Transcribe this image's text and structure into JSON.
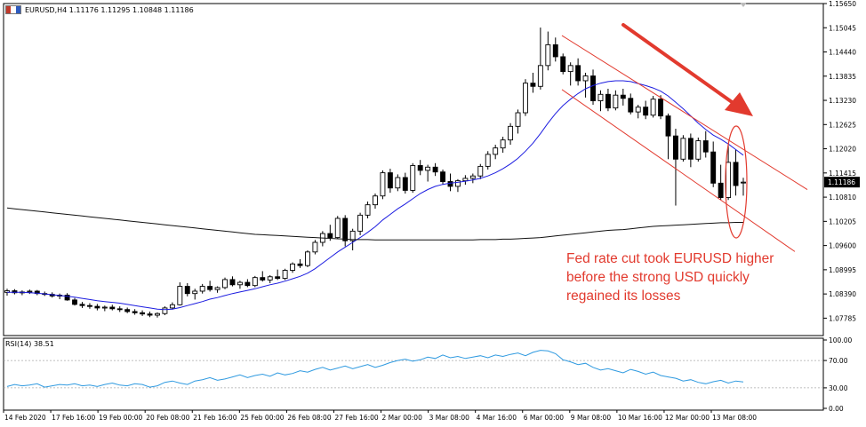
{
  "header": {
    "symbol_line": "EURUSD,H4  1.11176 1.11295 1.10848 1.11186",
    "flag_colors": [
      "#c0392b",
      "#ffffff",
      "#2e5bbf"
    ]
  },
  "rsi_header": "RSI(14) 38.51",
  "annotation": {
    "text": "Fed rate cut took EURUSD higher before the strong USD quickly regained its losses",
    "color": "#e23a2e"
  },
  "chart_data": [
    {
      "type": "candlestick",
      "symbol": "EURUSD",
      "timeframe": "H4",
      "last_ohlc": {
        "open": 1.11176,
        "high": 1.11295,
        "low": 1.10848,
        "close": 1.11186
      },
      "current_price_label": "1.11186",
      "y_ticks": [
        "1.15650",
        "1.15045",
        "1.14440",
        "1.13835",
        "1.13230",
        "1.12625",
        "1.12020",
        "1.11415",
        "1.10810",
        "1.10205",
        "1.09600",
        "1.08995",
        "1.08390",
        "1.07785"
      ],
      "ylim": [
        1.0735,
        1.1565
      ],
      "x_labels": [
        "14 Feb 2020",
        "17 Feb 16:00",
        "19 Feb 00:00",
        "20 Feb 08:00",
        "21 Feb 16:00",
        "25 Feb 00:00",
        "26 Feb 08:00",
        "27 Feb 16:00",
        "2 Mar 00:00",
        "3 Mar 08:00",
        "4 Mar 16:00",
        "6 Mar 00:00",
        "9 Mar 08:00",
        "10 Mar 16:00",
        "12 Mar 00:00",
        "13 Mar 08:00"
      ],
      "candles": [
        [
          1.0843,
          1.0852,
          1.0835,
          1.0847
        ],
        [
          1.0847,
          1.0851,
          1.0838,
          1.0842
        ],
        [
          1.0842,
          1.0848,
          1.0836,
          1.0844
        ],
        [
          1.0844,
          1.085,
          1.0839,
          1.0846
        ],
        [
          1.0846,
          1.0849,
          1.0836,
          1.084
        ],
        [
          1.084,
          1.0845,
          1.0834,
          1.0838
        ],
        [
          1.0838,
          1.0843,
          1.083,
          1.0834
        ],
        [
          1.0834,
          1.084,
          1.0826,
          1.0836
        ],
        [
          1.0836,
          1.0841,
          1.0822,
          1.0824
        ],
        [
          1.0824,
          1.0829,
          1.081,
          1.0813
        ],
        [
          1.0813,
          1.0819,
          1.0804,
          1.081
        ],
        [
          1.081,
          1.0816,
          1.0802,
          1.0808
        ],
        [
          1.0808,
          1.0814,
          1.0798,
          1.0804
        ],
        [
          1.0804,
          1.081,
          1.0796,
          1.0806
        ],
        [
          1.0806,
          1.0812,
          1.0798,
          1.0802
        ],
        [
          1.0802,
          1.0808,
          1.0794,
          1.08
        ],
        [
          1.08,
          1.0805,
          1.0791,
          1.0795
        ],
        [
          1.0795,
          1.0801,
          1.0787,
          1.0792
        ],
        [
          1.0792,
          1.0798,
          1.0784,
          1.0789
        ],
        [
          1.0789,
          1.0795,
          1.0781,
          1.0786
        ],
        [
          1.0786,
          1.0793,
          1.078,
          1.079
        ],
        [
          1.079,
          1.0808,
          1.0786,
          1.0804
        ],
        [
          1.0804,
          1.0818,
          1.08,
          1.0812
        ],
        [
          1.0812,
          1.0868,
          1.081,
          1.0858
        ],
        [
          1.0858,
          1.0866,
          1.0833,
          1.084
        ],
        [
          1.084,
          1.0852,
          1.0825,
          1.0846
        ],
        [
          1.0846,
          1.0864,
          1.084,
          1.0858
        ],
        [
          1.0858,
          1.0872,
          1.0845,
          1.085
        ],
        [
          1.085,
          1.0858,
          1.0842,
          1.0855
        ],
        [
          1.0855,
          1.088,
          1.0851,
          1.0875
        ],
        [
          1.0875,
          1.0883,
          1.0858,
          1.0862
        ],
        [
          1.0862,
          1.0872,
          1.0852,
          1.0868
        ],
        [
          1.0868,
          1.0876,
          1.0856,
          1.086
        ],
        [
          1.086,
          1.0884,
          1.0856,
          1.088
        ],
        [
          1.088,
          1.0896,
          1.087,
          1.0874
        ],
        [
          1.0874,
          1.0886,
          1.0866,
          1.0882
        ],
        [
          1.0882,
          1.09,
          1.0874,
          1.0878
        ],
        [
          1.0878,
          1.0902,
          1.0874,
          1.0898
        ],
        [
          1.0898,
          1.0918,
          1.0892,
          1.0914
        ],
        [
          1.0914,
          1.0926,
          1.0904,
          1.091
        ],
        [
          1.091,
          1.0948,
          1.0906,
          1.0944
        ],
        [
          1.0944,
          1.0974,
          1.0938,
          1.0968
        ],
        [
          1.0968,
          1.0996,
          1.0958,
          1.099
        ],
        [
          1.099,
          1.1012,
          1.0972,
          1.098
        ],
        [
          1.098,
          1.1034,
          1.0976,
          1.1028
        ],
        [
          1.1028,
          1.1036,
          1.0958,
          1.0972
        ],
        [
          1.0972,
          1.1002,
          1.0948,
          1.0996
        ],
        [
          1.0996,
          1.1042,
          1.0986,
          1.1036
        ],
        [
          1.1036,
          1.107,
          1.1028,
          1.1062
        ],
        [
          1.1062,
          1.109,
          1.1052,
          1.1084
        ],
        [
          1.1084,
          1.1148,
          1.1076,
          1.1142
        ],
        [
          1.1142,
          1.1152,
          1.1092,
          1.1104
        ],
        [
          1.1104,
          1.1138,
          1.1096,
          1.113
        ],
        [
          1.113,
          1.1142,
          1.109,
          1.1098
        ],
        [
          1.1098,
          1.1166,
          1.1092,
          1.116
        ],
        [
          1.116,
          1.1174,
          1.1136,
          1.1148
        ],
        [
          1.1148,
          1.1162,
          1.112,
          1.1156
        ],
        [
          1.1156,
          1.1166,
          1.1134,
          1.1144
        ],
        [
          1.1144,
          1.115,
          1.1112,
          1.112
        ],
        [
          1.112,
          1.114,
          1.1096,
          1.1108
        ],
        [
          1.1108,
          1.1126,
          1.1094,
          1.1122
        ],
        [
          1.1122,
          1.1136,
          1.1112,
          1.1128
        ],
        [
          1.1128,
          1.114,
          1.1116,
          1.1134
        ],
        [
          1.1134,
          1.1164,
          1.1126,
          1.1158
        ],
        [
          1.1158,
          1.1196,
          1.115,
          1.1188
        ],
        [
          1.1188,
          1.1212,
          1.1176,
          1.1204
        ],
        [
          1.1204,
          1.1232,
          1.1192,
          1.1224
        ],
        [
          1.1224,
          1.1266,
          1.1212,
          1.1258
        ],
        [
          1.1258,
          1.13,
          1.124,
          1.1292
        ],
        [
          1.1292,
          1.1376,
          1.1284,
          1.1366
        ],
        [
          1.1366,
          1.1392,
          1.1342,
          1.1358
        ],
        [
          1.1358,
          1.1505,
          1.135,
          1.141
        ],
        [
          1.141,
          1.1495,
          1.1398,
          1.1462
        ],
        [
          1.1462,
          1.148,
          1.142,
          1.1432
        ],
        [
          1.1432,
          1.144,
          1.1388,
          1.1395
        ],
        [
          1.1395,
          1.1418,
          1.136,
          1.141
        ],
        [
          1.141,
          1.1428,
          1.136,
          1.1372
        ],
        [
          1.1372,
          1.1392,
          1.133,
          1.1384
        ],
        [
          1.1384,
          1.14,
          1.1312,
          1.1322
        ],
        [
          1.1322,
          1.1348,
          1.1296,
          1.1338
        ],
        [
          1.1338,
          1.1352,
          1.1296,
          1.1304
        ],
        [
          1.1304,
          1.1348,
          1.1298,
          1.1336
        ],
        [
          1.1336,
          1.1352,
          1.131,
          1.1328
        ],
        [
          1.1328,
          1.134,
          1.1288,
          1.1294
        ],
        [
          1.1294,
          1.1312,
          1.1278,
          1.1306
        ],
        [
          1.1306,
          1.1322,
          1.1276,
          1.1286
        ],
        [
          1.1286,
          1.1334,
          1.128,
          1.1326
        ],
        [
          1.1326,
          1.1336,
          1.1276,
          1.1284
        ],
        [
          1.1284,
          1.129,
          1.1176,
          1.1234
        ],
        [
          1.1234,
          1.1252,
          1.106,
          1.1176
        ],
        [
          1.1176,
          1.1236,
          1.117,
          1.1228
        ],
        [
          1.1228,
          1.124,
          1.1156,
          1.1176
        ],
        [
          1.1176,
          1.123,
          1.117,
          1.1222
        ],
        [
          1.1222,
          1.1246,
          1.118,
          1.1194
        ],
        [
          1.1194,
          1.122,
          1.1106,
          1.1116
        ],
        [
          1.1116,
          1.1162,
          1.1074,
          1.108
        ],
        [
          1.108,
          1.1212,
          1.1074,
          1.1168
        ],
        [
          1.1168,
          1.12,
          1.1085,
          1.111
        ],
        [
          1.11176,
          1.11295,
          1.10848,
          1.11186
        ]
      ],
      "indicators": [
        {
          "name": "fast MA",
          "color": "#1c1ce0",
          "values": [
            1.0843,
            1.0843,
            1.0843,
            1.0842,
            1.0841,
            1.0839,
            1.0837,
            1.0835,
            1.0833,
            1.0831,
            1.0828,
            1.0825,
            1.0822,
            1.082,
            1.0818,
            1.0816,
            1.0813,
            1.081,
            1.0807,
            1.0804,
            1.0801,
            1.08,
            1.0801,
            1.0805,
            1.081,
            1.0815,
            1.082,
            1.0826,
            1.083,
            1.0835,
            1.084,
            1.0844,
            1.0848,
            1.0852,
            1.0857,
            1.0862,
            1.0866,
            1.0871,
            1.0877,
            1.0883,
            1.0891,
            1.0902,
            1.0916,
            1.093,
            1.0944,
            1.0956,
            1.0968,
            1.098,
            1.0993,
            1.1007,
            1.1024,
            1.1038,
            1.1052,
            1.1064,
            1.1077,
            1.109,
            1.11,
            1.1108,
            1.1113,
            1.1116,
            1.1118,
            1.1121,
            1.1124,
            1.1128,
            1.1134,
            1.1142,
            1.1152,
            1.1164,
            1.1178,
            1.1196,
            1.1216,
            1.124,
            1.1266,
            1.129,
            1.131,
            1.1326,
            1.134,
            1.1352,
            1.136,
            1.1366,
            1.137,
            1.1372,
            1.1372,
            1.137,
            1.1365,
            1.136,
            1.1354,
            1.1346,
            1.1334,
            1.1318,
            1.1302,
            1.1284,
            1.1266,
            1.125,
            1.1236,
            1.1226,
            1.1214,
            1.12,
            1.1186
          ]
        },
        {
          "name": "slow MA",
          "color": "#111111",
          "values": [
            1.1054,
            1.1052,
            1.105,
            1.1048,
            1.1046,
            1.1044,
            1.1042,
            1.104,
            1.1038,
            1.1036,
            1.1034,
            1.1032,
            1.103,
            1.1028,
            1.1026,
            1.1024,
            1.1022,
            1.102,
            1.1018,
            1.1016,
            1.1014,
            1.1012,
            1.101,
            1.1008,
            1.1006,
            1.1004,
            1.1002,
            1.1,
            1.0998,
            1.0996,
            1.0994,
            1.0992,
            1.099,
            1.0988,
            1.0987,
            1.0986,
            1.0985,
            1.0984,
            1.0983,
            1.0982,
            1.0981,
            1.098,
            1.0979,
            1.0978,
            1.0977,
            1.0976,
            1.0975,
            1.0975,
            1.0975,
            1.0974,
            1.0974,
            1.0974,
            1.0974,
            1.0974,
            1.0974,
            1.0974,
            1.0974,
            1.0974,
            1.0974,
            1.0974,
            1.0974,
            1.0974,
            1.0974,
            1.0975,
            1.0975,
            1.0975,
            1.0976,
            1.0976,
            1.0977,
            1.0978,
            1.0979,
            1.098,
            1.0982,
            1.0984,
            1.0986,
            1.0988,
            1.099,
            1.0992,
            1.0994,
            1.0996,
            1.0998,
            1.0999,
            1.1,
            1.1002,
            1.1004,
            1.1006,
            1.1008,
            1.1009,
            1.101,
            1.1011,
            1.1012,
            1.1013,
            1.1014,
            1.1015,
            1.1016,
            1.1017,
            1.1017,
            1.1018,
            1.1018
          ]
        }
      ],
      "channel": {
        "upper": [
          [
            1.1485,
            1.11
          ]
        ],
        "lower": [
          [
            1.135,
            1.0945
          ]
        ]
      },
      "grid": false
    },
    {
      "type": "line",
      "name": "RSI(14)",
      "last_value": 38.51,
      "color": "#2f9ae0",
      "y_ticks": [
        "100.00",
        "70.00",
        "30.00",
        "0.00"
      ],
      "ylim": [
        0,
        100
      ],
      "levels": [
        70,
        30
      ],
      "values": [
        32,
        35,
        33,
        34,
        36,
        31,
        33,
        35,
        34,
        36,
        33,
        34,
        32,
        35,
        37,
        34,
        33,
        36,
        35,
        31,
        33,
        38,
        40,
        37,
        35,
        40,
        42,
        45,
        41,
        43,
        46,
        49,
        45,
        48,
        50,
        47,
        52,
        49,
        51,
        55,
        53,
        57,
        60,
        56,
        59,
        62,
        58,
        61,
        64,
        60,
        63,
        67,
        70,
        72,
        69,
        71,
        75,
        73,
        78,
        74,
        76,
        73,
        75,
        77,
        74,
        78,
        76,
        79,
        81,
        77,
        82,
        85,
        84,
        80,
        71,
        68,
        64,
        66,
        60,
        56,
        58,
        55,
        52,
        57,
        54,
        50,
        53,
        48,
        46,
        44,
        40,
        42,
        38,
        36,
        39,
        41,
        37,
        40,
        38.51
      ]
    }
  ]
}
